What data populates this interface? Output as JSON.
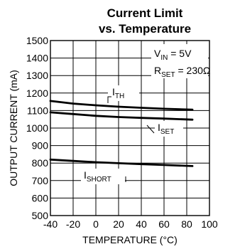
{
  "chart_data": {
    "type": "line",
    "title_line1": "Current Limit",
    "title_line2": "vs. Temperature",
    "xlabel": "TEMPERATURE (°C)",
    "ylabel": "OUTPUT CURRENT (mA)",
    "xlim": [
      -40,
      100
    ],
    "ylim": [
      500,
      1500
    ],
    "x_ticks": [
      "-40",
      "-20",
      "0",
      "20",
      "40",
      "60",
      "80",
      "100"
    ],
    "y_ticks": [
      "500",
      "600",
      "700",
      "800",
      "900",
      "1000",
      "1100",
      "1200",
      "1300",
      "1400",
      "1500"
    ],
    "grid": true,
    "annotations": {
      "vin": {
        "main": "V",
        "sub": "IN",
        "rest": " = 5V"
      },
      "rset": {
        "main": "R",
        "sub": "SET",
        "rest": " = 230Ω"
      }
    },
    "series": [
      {
        "name": "TH",
        "label_main": "I",
        "label_sub": "TH",
        "x": [
          -40,
          -20,
          0,
          20,
          40,
          60,
          85
        ],
        "y": [
          1155,
          1140,
          1130,
          1122,
          1116,
          1110,
          1105
        ]
      },
      {
        "name": "SET",
        "label_main": "I",
        "label_sub": "SET",
        "x": [
          -40,
          -20,
          0,
          20,
          40,
          60,
          85
        ],
        "y": [
          1090,
          1080,
          1070,
          1063,
          1058,
          1054,
          1048
        ]
      },
      {
        "name": "SHORT",
        "label_main": "I",
        "label_sub": "SHORT",
        "x": [
          -40,
          -20,
          0,
          20,
          40,
          60,
          85
        ],
        "y": [
          820,
          812,
          805,
          799,
          794,
          789,
          783
        ]
      }
    ]
  }
}
